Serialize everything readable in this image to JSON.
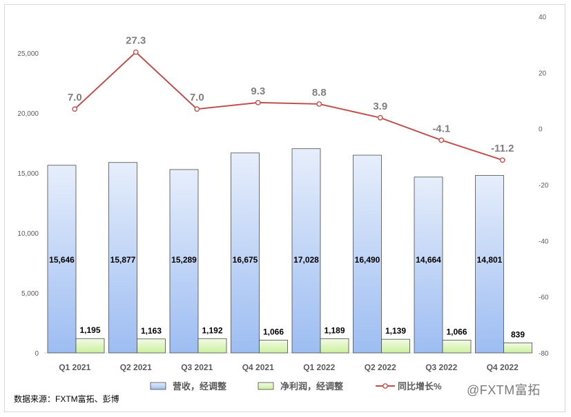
{
  "chart_data": {
    "type": "bar",
    "categories": [
      "Q1 2021",
      "Q2 2021",
      "Q3 2021",
      "Q4 2021",
      "Q1 2022",
      "Q2 2022",
      "Q3 2022",
      "Q4 2022"
    ],
    "series": [
      {
        "name": "营收，经调整",
        "kind": "bar",
        "axis": "left",
        "color": "#b4cdf3",
        "values": [
          15646,
          15877,
          15289,
          16675,
          17028,
          16490,
          14664,
          14801
        ],
        "labels": [
          "15,646",
          "15,877",
          "15,289",
          "16,675",
          "17,028",
          "16,490",
          "14,664",
          "14,801"
        ]
      },
      {
        "name": "净利润，经调整",
        "kind": "bar",
        "axis": "left",
        "color": "#d8f5b0",
        "values": [
          1195,
          1163,
          1192,
          1066,
          1189,
          1139,
          1066,
          839
        ],
        "labels": [
          "1,195",
          "1,163",
          "1,192",
          "1,066",
          "1,189",
          "1,139",
          "1,066",
          "839"
        ]
      },
      {
        "name": "同比增长%",
        "kind": "line",
        "axis": "right",
        "color": "#c0504d",
        "values": [
          7.0,
          27.3,
          7.0,
          9.3,
          8.8,
          3.9,
          -4.1,
          -11.2
        ],
        "labels": [
          "7.0",
          "27.3",
          "7.0",
          "9.3",
          "8.8",
          "3.9",
          "-4.1",
          "-11.2"
        ]
      }
    ],
    "y_left": {
      "ylim": [
        0,
        25000
      ],
      "ticks": [
        0,
        5000,
        10000,
        15000,
        20000,
        25000
      ],
      "tick_labels": [
        "0",
        "5,000",
        "10,000",
        "15,000",
        "20,000",
        "25,000"
      ]
    },
    "y_right": {
      "ylim": [
        -80,
        40
      ],
      "ticks": [
        -80,
        -60,
        -40,
        -20,
        0,
        20,
        40
      ],
      "tick_labels": [
        "-80",
        "-60",
        "-40",
        "-20",
        "0",
        "20",
        "40"
      ]
    },
    "grid": false,
    "legend": "bottom"
  },
  "source_text": "数据来源：FXTM富拓、彭博",
  "watermark_text": "@FXTM富拓"
}
